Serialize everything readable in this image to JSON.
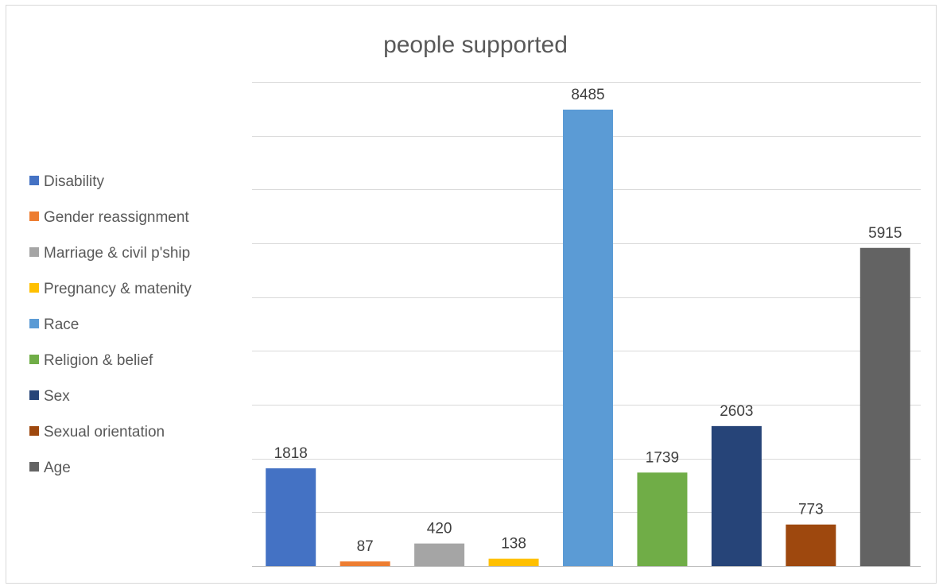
{
  "chart_data": {
    "type": "bar",
    "title": "people supported",
    "xlabel": "",
    "ylabel": "",
    "ylim": [
      0,
      9000
    ],
    "grid": true,
    "legend_position": "left",
    "categories": [
      "Disability",
      "Gender reassignment",
      "Marriage & civil p'ship",
      "Pregnancy & matenity",
      "Race",
      "Religion & belief",
      "Sex",
      "Sexual orientation",
      "Age"
    ],
    "values": [
      1818,
      87,
      420,
      138,
      8485,
      1739,
      2603,
      773,
      5915
    ],
    "colors": [
      "#4472c4",
      "#ed7d31",
      "#a5a5a5",
      "#ffc000",
      "#5b9bd5",
      "#70ad47",
      "#264478",
      "#9e480e",
      "#636363"
    ]
  }
}
